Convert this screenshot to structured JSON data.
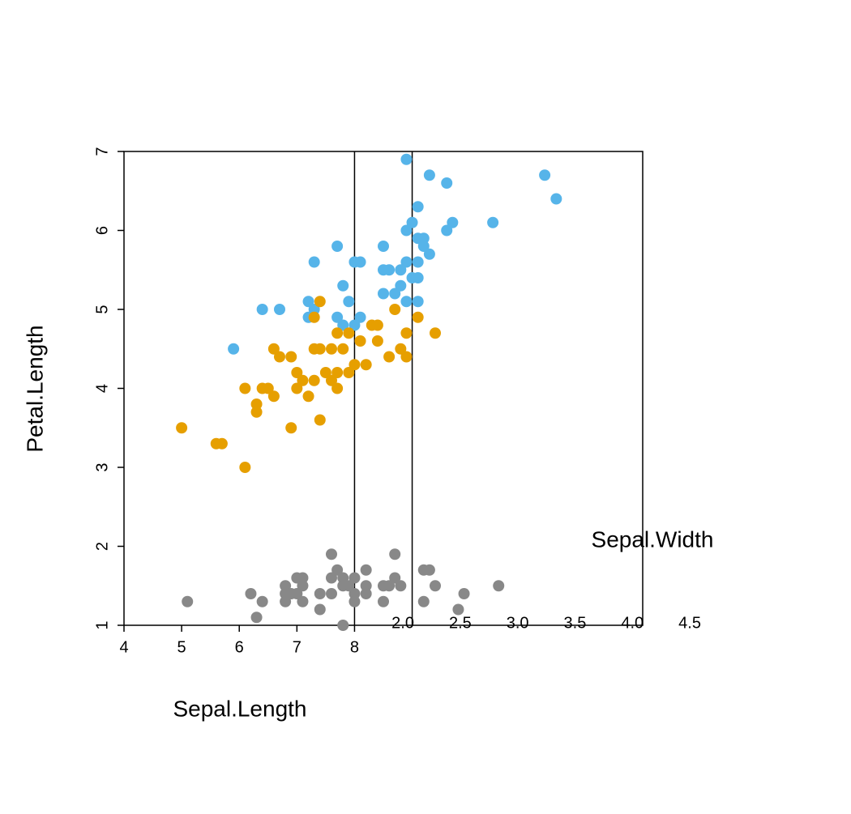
{
  "chart_data": {
    "type": "scatter",
    "xlabel": "Sepal.Length",
    "ylabel": "Petal.Length",
    "x2label": "Sepal.Width",
    "xlim": [
      4,
      13
    ],
    "xticks": [
      4,
      5,
      6,
      7,
      8
    ],
    "ylim": [
      1,
      7
    ],
    "yticks": [
      1,
      2,
      3,
      4,
      5,
      6,
      7
    ],
    "x2lim": [
      -0.43,
      4.09
    ],
    "x2ticks": [
      {
        "value": 2,
        "label": "2.0"
      },
      2.5,
      {
        "value": 3,
        "label": "3.0"
      },
      3.5,
      {
        "value": 4,
        "label": "4.0"
      },
      4.5
    ],
    "vlines": [
      8,
      9
    ],
    "series": [
      {
        "color": "#56B4E9",
        "x": [
          8.9,
          9.3,
          11.3,
          9.6,
          11.5,
          9.1,
          9.0,
          9.7,
          10.4,
          8.9,
          9.6,
          9.1,
          9.2,
          7.7,
          8.5,
          9.2,
          9.3,
          7.3,
          8.0,
          8.1,
          8.9,
          9.1,
          8.5,
          8.6,
          8.8,
          9.0,
          9.1,
          7.8,
          8.8,
          8.5,
          8.7,
          7.2,
          7.9,
          8.9,
          9.1,
          6.4,
          6.7,
          7.3,
          7.2,
          7.7,
          8.1,
          7.8,
          8.0,
          5.9
        ],
        "values": [
          6.9,
          6.7,
          6.7,
          6.6,
          6.4,
          6.3,
          6.1,
          6.1,
          6.1,
          6.0,
          6.0,
          5.9,
          5.9,
          5.8,
          5.8,
          5.8,
          5.7,
          5.6,
          5.6,
          5.6,
          5.6,
          5.6,
          5.5,
          5.5,
          5.5,
          5.4,
          5.4,
          5.3,
          5.3,
          5.2,
          5.2,
          5.1,
          5.1,
          5.1,
          5.1,
          5.0,
          5.0,
          5.0,
          4.9,
          4.9,
          4.9,
          4.8,
          4.8,
          4.5
        ]
      },
      {
        "color": "#E69F00",
        "x": [
          7.4,
          8.7,
          7.3,
          9.1,
          7.9,
          7.7,
          8.9,
          9.4,
          8.3,
          8.4,
          8.1,
          8.4,
          6.6,
          7.3,
          7.4,
          7.6,
          7.8,
          8.8,
          6.7,
          6.9,
          8.6,
          8.9,
          8.0,
          8.2,
          7.0,
          7.5,
          7.7,
          7.9,
          7.6,
          7.1,
          7.3,
          6.1,
          6.4,
          6.5,
          7.0,
          7.7,
          6.6,
          7.2,
          6.3,
          6.3,
          7.4,
          5.0,
          6.9,
          5.6,
          5.7,
          6.1
        ],
        "values": [
          5.1,
          5.0,
          4.9,
          4.9,
          4.7,
          4.7,
          4.7,
          4.7,
          4.8,
          4.8,
          4.6,
          4.6,
          4.5,
          4.5,
          4.5,
          4.5,
          4.5,
          4.5,
          4.4,
          4.4,
          4.4,
          4.4,
          4.3,
          4.3,
          4.2,
          4.2,
          4.2,
          4.2,
          4.1,
          4.1,
          4.1,
          4.0,
          4.0,
          4.0,
          4.0,
          4.0,
          3.9,
          3.9,
          3.8,
          3.7,
          3.6,
          3.5,
          3.5,
          3.3,
          3.3,
          3.0
        ]
      },
      {
        "color": "#888888",
        "x": [
          7.6,
          8.7,
          7.7,
          8.2,
          9.2,
          9.3,
          7.0,
          7.1,
          7.6,
          7.8,
          8.0,
          8.7,
          6.8,
          7.1,
          7.8,
          7.9,
          8.2,
          8.5,
          8.6,
          8.8,
          9.4,
          10.5,
          6.2,
          6.8,
          6.9,
          7.0,
          7.4,
          7.6,
          8.0,
          8.2,
          9.9,
          5.1,
          6.4,
          6.8,
          7.1,
          8.0,
          8.5,
          9.2,
          7.4,
          9.8,
          6.3,
          7.8
        ],
        "values": [
          1.9,
          1.9,
          1.7,
          1.7,
          1.7,
          1.7,
          1.6,
          1.6,
          1.6,
          1.6,
          1.6,
          1.6,
          1.5,
          1.5,
          1.5,
          1.5,
          1.5,
          1.5,
          1.5,
          1.5,
          1.5,
          1.5,
          1.4,
          1.4,
          1.4,
          1.4,
          1.4,
          1.4,
          1.4,
          1.4,
          1.4,
          1.3,
          1.3,
          1.3,
          1.3,
          1.3,
          1.3,
          1.3,
          1.2,
          1.2,
          1.1,
          1.0
        ]
      }
    ]
  }
}
